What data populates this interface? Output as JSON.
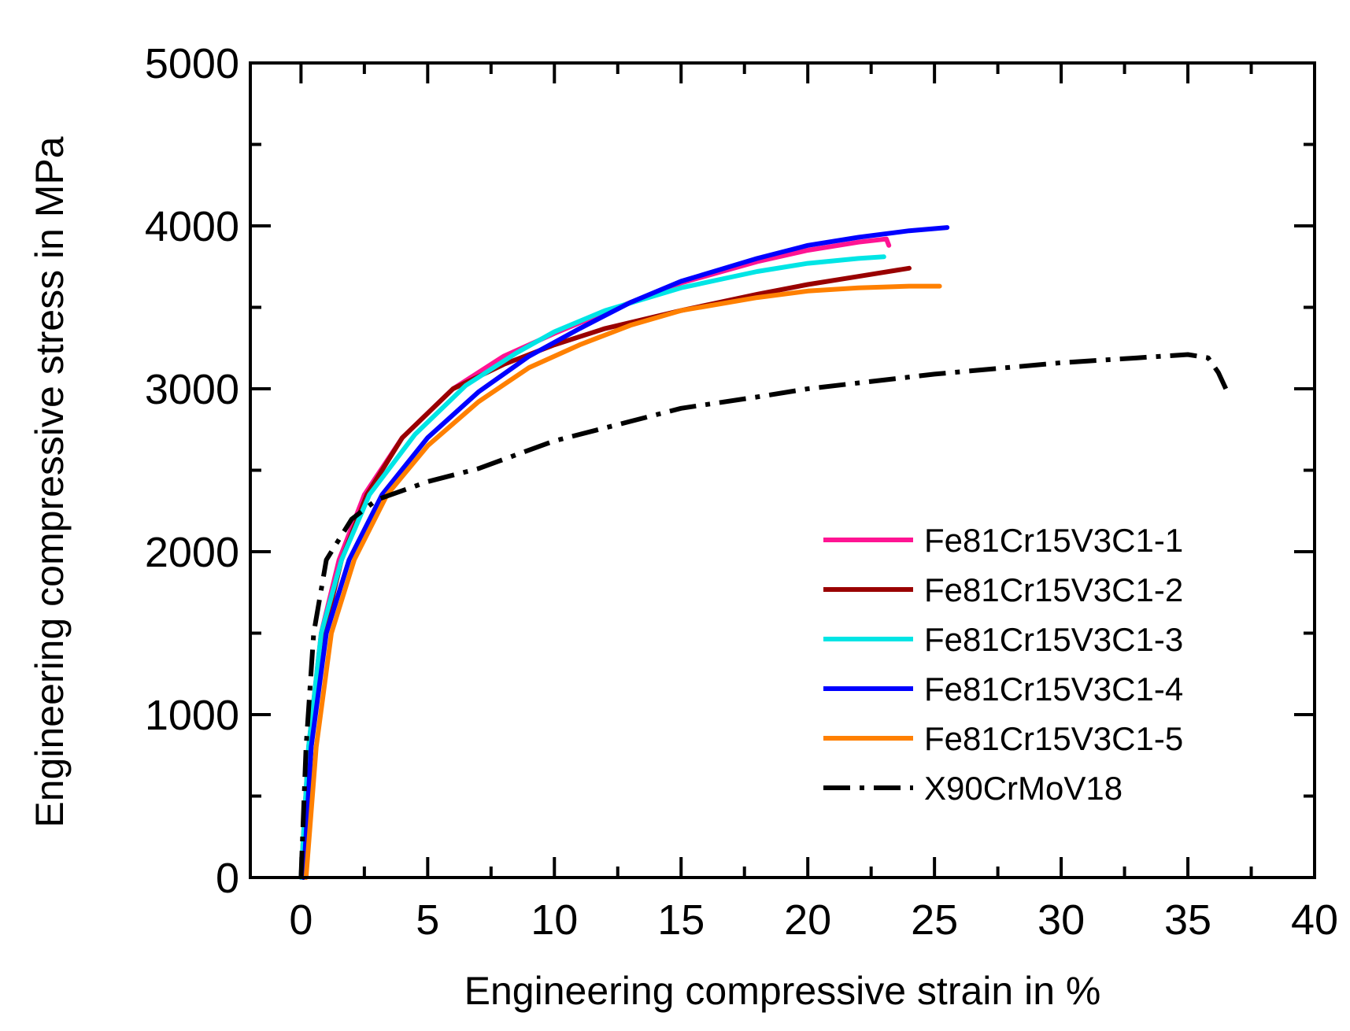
{
  "chart_data": {
    "type": "line",
    "title": "",
    "xlabel": "Engineering compressive strain in %",
    "ylabel": "Engineering compressive stress in MPa",
    "xlim": [
      -2,
      40
    ],
    "ylim": [
      0,
      5000
    ],
    "xticks": [
      0,
      5,
      10,
      15,
      20,
      25,
      30,
      35,
      40
    ],
    "xtick_labels": [
      "0",
      "5",
      "10",
      "15",
      "20",
      "25",
      "30",
      "35",
      "40"
    ],
    "yticks": [
      0,
      1000,
      2000,
      3000,
      4000,
      5000
    ],
    "ytick_labels": [
      "0",
      "1000",
      "2000",
      "3000",
      "4000",
      "5000"
    ],
    "legend_position": "bottom-right",
    "series": [
      {
        "name": "Fe81Cr15V3C1-1",
        "color": "#ff1493",
        "dash": "solid",
        "points": [
          [
            0,
            0
          ],
          [
            0.3,
            800
          ],
          [
            0.8,
            1500
          ],
          [
            1.5,
            1950
          ],
          [
            2.5,
            2350
          ],
          [
            4,
            2700
          ],
          [
            6,
            3000
          ],
          [
            8,
            3200
          ],
          [
            10,
            3340
          ],
          [
            12,
            3470
          ],
          [
            15,
            3650
          ],
          [
            18,
            3780
          ],
          [
            20,
            3850
          ],
          [
            22,
            3900
          ],
          [
            23.1,
            3920
          ],
          [
            23.2,
            3880
          ]
        ]
      },
      {
        "name": "Fe81Cr15V3C1-2",
        "color": "#990000",
        "dash": "solid",
        "points": [
          [
            0.1,
            0
          ],
          [
            0.4,
            800
          ],
          [
            0.9,
            1500
          ],
          [
            1.6,
            1950
          ],
          [
            2.6,
            2350
          ],
          [
            4,
            2700
          ],
          [
            6,
            3000
          ],
          [
            8,
            3150
          ],
          [
            10,
            3270
          ],
          [
            12,
            3370
          ],
          [
            15,
            3480
          ],
          [
            18,
            3580
          ],
          [
            20,
            3640
          ],
          [
            22,
            3690
          ],
          [
            24,
            3740
          ]
        ]
      },
      {
        "name": "Fe81Cr15V3C1-3",
        "color": "#00e5e5",
        "dash": "solid",
        "points": [
          [
            0,
            0
          ],
          [
            0.3,
            800
          ],
          [
            0.8,
            1500
          ],
          [
            1.6,
            1950
          ],
          [
            2.7,
            2350
          ],
          [
            4.5,
            2720
          ],
          [
            6.5,
            3020
          ],
          [
            8.5,
            3220
          ],
          [
            10,
            3350
          ],
          [
            12,
            3480
          ],
          [
            15,
            3620
          ],
          [
            18,
            3720
          ],
          [
            20,
            3770
          ],
          [
            22,
            3800
          ],
          [
            23,
            3810
          ]
        ]
      },
      {
        "name": "Fe81Cr15V3C1-4",
        "color": "#0000ff",
        "dash": "solid",
        "points": [
          [
            0.1,
            0
          ],
          [
            0.4,
            800
          ],
          [
            1,
            1500
          ],
          [
            1.9,
            1950
          ],
          [
            3.2,
            2350
          ],
          [
            5,
            2700
          ],
          [
            7,
            2980
          ],
          [
            9,
            3200
          ],
          [
            11,
            3370
          ],
          [
            13,
            3530
          ],
          [
            15,
            3660
          ],
          [
            18,
            3800
          ],
          [
            20,
            3880
          ],
          [
            22,
            3930
          ],
          [
            24,
            3970
          ],
          [
            25.5,
            3990
          ]
        ]
      },
      {
        "name": "Fe81Cr15V3C1-5",
        "color": "#ff8000",
        "dash": "solid",
        "points": [
          [
            0.2,
            0
          ],
          [
            0.6,
            800
          ],
          [
            1.2,
            1500
          ],
          [
            2.1,
            1950
          ],
          [
            3.4,
            2350
          ],
          [
            5,
            2650
          ],
          [
            7,
            2920
          ],
          [
            9,
            3130
          ],
          [
            11,
            3270
          ],
          [
            13,
            3390
          ],
          [
            15,
            3480
          ],
          [
            18,
            3560
          ],
          [
            20,
            3600
          ],
          [
            22,
            3620
          ],
          [
            24,
            3630
          ],
          [
            25.2,
            3630
          ]
        ]
      },
      {
        "name": "X90CrMoV18",
        "color": "#000000",
        "dash": "dash-dot",
        "points": [
          [
            0,
            0
          ],
          [
            0.2,
            800
          ],
          [
            0.5,
            1500
          ],
          [
            1,
            1950
          ],
          [
            2,
            2200
          ],
          [
            3,
            2320
          ],
          [
            5,
            2430
          ],
          [
            7,
            2510
          ],
          [
            10,
            2680
          ],
          [
            13,
            2800
          ],
          [
            15,
            2880
          ],
          [
            18,
            2950
          ],
          [
            20,
            3000
          ],
          [
            25,
            3090
          ],
          [
            30,
            3160
          ],
          [
            33,
            3190
          ],
          [
            35,
            3210
          ],
          [
            35.8,
            3190
          ],
          [
            36.2,
            3100
          ],
          [
            36.5,
            3000
          ]
        ]
      }
    ]
  }
}
